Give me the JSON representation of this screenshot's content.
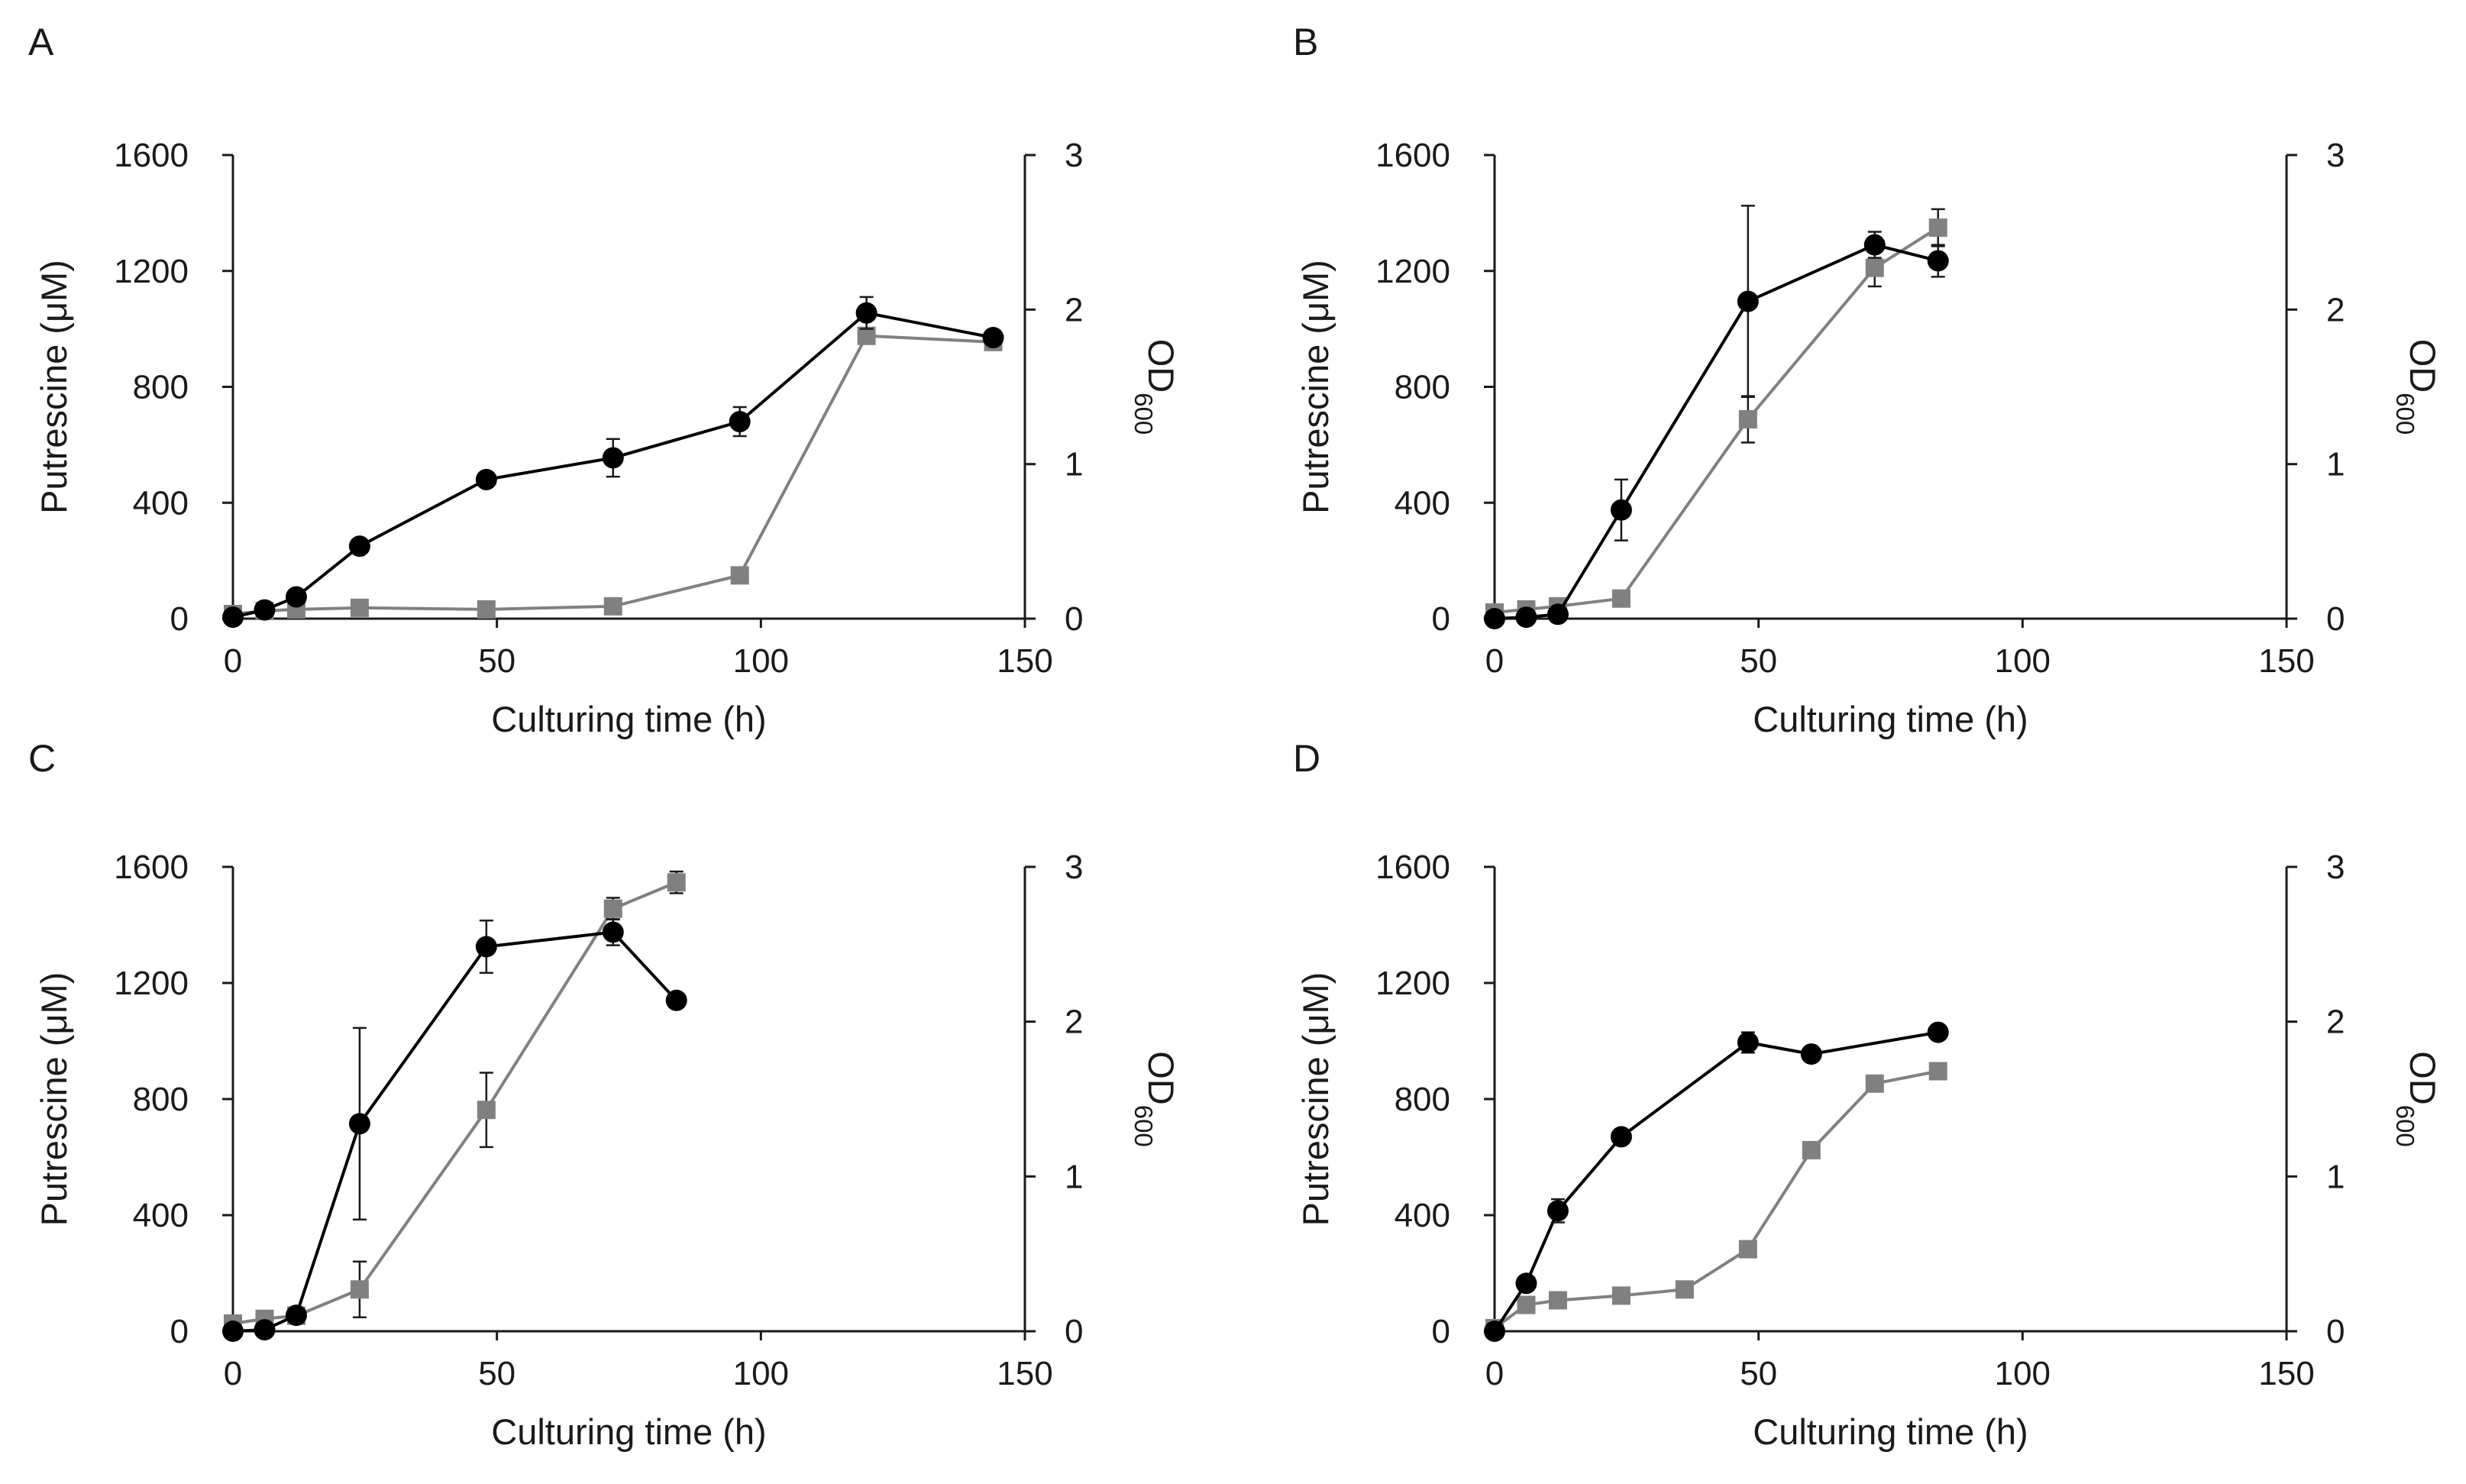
{
  "chart_data": [
    {
      "type": "line",
      "panel_label": "A",
      "xlabel": "Culturing time (h)",
      "ylabel": "Putrescine (μM)",
      "y2label_main": "OD",
      "y2label_sub": "600",
      "xlim": [
        0,
        150
      ],
      "ylim": [
        0,
        1600
      ],
      "y2lim": [
        0,
        3
      ],
      "x_ticks": [
        0,
        50,
        100,
        150
      ],
      "y_ticks": [
        0,
        400,
        800,
        1200,
        1600
      ],
      "y2_ticks": [
        0,
        1,
        2,
        3
      ],
      "series": [
        {
          "name": "Putrescine",
          "axis": "left",
          "marker": "circle",
          "color": "#000000",
          "x": [
            0,
            6,
            12,
            24,
            48,
            72,
            96,
            120,
            144
          ],
          "y": [
            5,
            30,
            75,
            250,
            480,
            555,
            680,
            1055,
            970
          ],
          "err": [
            0,
            0,
            0,
            0,
            0,
            65,
            50,
            55,
            0
          ]
        },
        {
          "name": "OD600",
          "axis": "right",
          "marker": "square",
          "color": "#808080",
          "x": [
            0,
            6,
            12,
            24,
            48,
            72,
            96,
            120,
            144
          ],
          "y": [
            0.03,
            0.05,
            0.06,
            0.07,
            0.06,
            0.08,
            0.28,
            1.83,
            1.79
          ],
          "err": [
            0,
            0,
            0,
            0,
            0,
            0,
            0,
            0.05,
            0
          ]
        }
      ]
    },
    {
      "type": "line",
      "panel_label": "B",
      "xlabel": "Culturing time (h)",
      "ylabel": "Putrescine (μM)",
      "y2label_main": "OD",
      "y2label_sub": "600",
      "xlim": [
        0,
        150
      ],
      "ylim": [
        0,
        1600
      ],
      "y2lim": [
        0,
        3
      ],
      "x_ticks": [
        0,
        50,
        100,
        150
      ],
      "y_ticks": [
        0,
        400,
        800,
        1200,
        1600
      ],
      "y2_ticks": [
        0,
        1,
        2,
        3
      ],
      "series": [
        {
          "name": "Putrescine",
          "axis": "left",
          "marker": "circle",
          "color": "#000000",
          "x": [
            0,
            6,
            12,
            24,
            48,
            72,
            84
          ],
          "y": [
            0,
            5,
            15,
            375,
            1095,
            1290,
            1235
          ],
          "err": [
            0,
            0,
            0,
            105,
            330,
            45,
            55
          ]
        },
        {
          "name": "OD600",
          "axis": "right",
          "marker": "square",
          "color": "#808080",
          "x": [
            0,
            6,
            12,
            24,
            48,
            72,
            84
          ],
          "y": [
            0.04,
            0.06,
            0.08,
            0.13,
            1.29,
            2.27,
            2.53
          ],
          "err": [
            0,
            0,
            0,
            0,
            0.15,
            0.12,
            0.12
          ]
        }
      ]
    },
    {
      "type": "line",
      "panel_label": "C",
      "xlabel": "Culturing time (h)",
      "ylabel": "Putrescine (μM)",
      "y2label_main": "OD",
      "y2label_sub": "600",
      "xlim": [
        0,
        150
      ],
      "ylim": [
        0,
        1600
      ],
      "y2lim": [
        0,
        3
      ],
      "x_ticks": [
        0,
        50,
        100,
        150
      ],
      "y_ticks": [
        0,
        400,
        800,
        1200,
        1600
      ],
      "y2_ticks": [
        0,
        1,
        2,
        3
      ],
      "series": [
        {
          "name": "Putrescine",
          "axis": "left",
          "marker": "circle",
          "color": "#000000",
          "x": [
            0,
            6,
            12,
            24,
            48,
            72,
            84
          ],
          "y": [
            0,
            5,
            55,
            715,
            1325,
            1375,
            1140
          ],
          "err": [
            0,
            0,
            0,
            330,
            90,
            45,
            0
          ]
        },
        {
          "name": "OD600",
          "axis": "right",
          "marker": "square",
          "color": "#808080",
          "x": [
            0,
            6,
            12,
            24,
            48,
            72,
            84
          ],
          "y": [
            0.05,
            0.08,
            0.1,
            0.27,
            1.43,
            2.73,
            2.9
          ],
          "err": [
            0,
            0,
            0,
            0.18,
            0.24,
            0.07,
            0.07
          ]
        }
      ]
    },
    {
      "type": "line",
      "panel_label": "D",
      "xlabel": "Culturing time (h)",
      "ylabel": "Putrescine (μM)",
      "y2label_main": "OD",
      "y2label_sub": "600",
      "xlim": [
        0,
        150
      ],
      "ylim": [
        0,
        1600
      ],
      "y2lim": [
        0,
        3
      ],
      "x_ticks": [
        0,
        50,
        100,
        150
      ],
      "y_ticks": [
        0,
        400,
        800,
        1200,
        1600
      ],
      "y2_ticks": [
        0,
        1,
        2,
        3
      ],
      "series": [
        {
          "name": "Putrescine",
          "axis": "left",
          "marker": "circle",
          "color": "#000000",
          "x": [
            0,
            6,
            12,
            24,
            48,
            60,
            84
          ],
          "y": [
            0,
            165,
            415,
            670,
            995,
            955,
            1030
          ],
          "err": [
            0,
            0,
            40,
            0,
            35,
            0,
            0
          ]
        },
        {
          "name": "OD600",
          "axis": "right",
          "marker": "square",
          "color": "#808080",
          "x": [
            0,
            6,
            12,
            24,
            36,
            48,
            60,
            72,
            84
          ],
          "y": [
            0.02,
            0.17,
            0.2,
            0.23,
            0.27,
            0.53,
            1.17,
            1.6,
            1.68
          ],
          "err": [
            0,
            0,
            0,
            0,
            0,
            0,
            0,
            0,
            0
          ]
        }
      ]
    }
  ]
}
